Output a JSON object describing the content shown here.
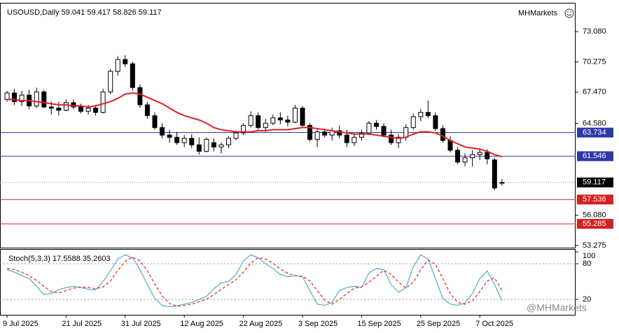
{
  "chart_data": [
    {
      "type": "candlestick",
      "title": "USOUSD,Daily",
      "brand": "MHMarkets",
      "watermark": "@MHMarkets",
      "categories": [
        "9 Jul 2025",
        null,
        null,
        null,
        null,
        null,
        null,
        null,
        "21 Jul 2025",
        null,
        null,
        null,
        null,
        null,
        null,
        null,
        "31 Jul 2025",
        null,
        null,
        null,
        null,
        null,
        null,
        null,
        "12 Aug 2025",
        null,
        null,
        null,
        null,
        null,
        null,
        null,
        "22 Aug 2025",
        null,
        null,
        null,
        null,
        null,
        null,
        null,
        "3 Sep 2025",
        null,
        null,
        null,
        null,
        null,
        null,
        null,
        "15 Sep 2025",
        null,
        null,
        null,
        null,
        null,
        null,
        null,
        "25 Sep 2025",
        null,
        null,
        null,
        null,
        null,
        null,
        null,
        "7 Oct 2025",
        null,
        null,
        null
      ],
      "open": [
        66.8,
        67.4,
        66.6,
        67.2,
        66.2,
        67.5,
        66.1,
        66.0,
        65.8,
        66.5,
        66.1,
        65.7,
        66.0,
        65.6,
        67.5,
        69.4,
        70.5,
        70.1,
        67.9,
        66.3,
        65.3,
        64.2,
        63.5,
        63.3,
        62.8,
        63.2,
        62.6,
        62.0,
        62.8,
        62.4,
        62.6,
        63.2,
        63.7,
        64.4,
        65.3,
        64.2,
        64.6,
        65.1,
        64.9,
        64.7,
        66.0,
        64.4,
        63.1,
        63.8,
        63.5,
        63.9,
        63.5,
        62.8,
        63.3,
        63.7,
        64.6,
        64.3,
        63.5,
        62.8,
        63.3,
        64.2,
        65.2,
        65.6,
        65.3,
        64.1,
        63.0,
        62.1,
        61.0,
        61.4,
        61.7,
        61.9,
        61.2,
        59.041
      ],
      "high": [
        67.6,
        67.8,
        67.6,
        67.7,
        67.9,
        67.7,
        66.6,
        66.6,
        66.8,
        66.8,
        66.4,
        66.3,
        66.3,
        67.8,
        69.6,
        70.8,
        70.9,
        70.3,
        68.2,
        66.6,
        65.6,
        64.6,
        64.0,
        63.8,
        63.5,
        63.6,
        63.3,
        63.3,
        63.2,
        62.8,
        63.4,
        63.9,
        64.6,
        65.7,
        65.6,
        65.0,
        65.4,
        65.6,
        65.3,
        66.3,
        66.2,
        64.6,
        64.0,
        64.1,
        64.2,
        64.4,
        64.0,
        63.6,
        64.0,
        64.8,
        64.9,
        64.6,
        64.0,
        63.6,
        64.5,
        65.5,
        65.9,
        66.7,
        65.6,
        64.4,
        63.4,
        62.4,
        61.8,
        62.1,
        62.3,
        62.2,
        61.4,
        59.417
      ],
      "low": [
        66.6,
        66.3,
        66.2,
        65.9,
        66.0,
        66.0,
        65.4,
        65.3,
        65.7,
        65.9,
        65.5,
        65.4,
        65.3,
        65.5,
        67.3,
        69.0,
        69.8,
        67.6,
        66.0,
        65.0,
        64.0,
        63.2,
        62.8,
        62.6,
        62.4,
        62.3,
        61.7,
        61.9,
        62.0,
        61.8,
        62.3,
        63.0,
        63.5,
        64.2,
        64.0,
        63.8,
        64.4,
        64.5,
        64.3,
        64.6,
        64.3,
        62.9,
        62.4,
        63.3,
        63.0,
        63.2,
        62.4,
        62.5,
        63.0,
        63.5,
        64.0,
        63.3,
        62.6,
        62.3,
        63.0,
        64.0,
        64.8,
        65.1,
        63.9,
        62.8,
        61.9,
        60.8,
        60.6,
        60.6,
        61.2,
        60.8,
        58.4,
        58.826
      ],
      "close": [
        67.4,
        66.6,
        67.2,
        66.2,
        67.5,
        66.1,
        66.0,
        65.8,
        66.5,
        66.1,
        65.7,
        66.0,
        65.6,
        67.5,
        69.4,
        70.5,
        70.1,
        67.9,
        66.3,
        65.3,
        64.2,
        63.5,
        63.3,
        62.8,
        63.2,
        62.6,
        62.0,
        63.1,
        62.4,
        62.6,
        63.2,
        63.7,
        64.4,
        65.3,
        64.2,
        64.6,
        65.1,
        64.9,
        64.7,
        66.0,
        64.4,
        63.1,
        63.8,
        63.5,
        63.9,
        63.5,
        62.8,
        63.3,
        63.7,
        64.6,
        64.3,
        63.5,
        62.8,
        63.3,
        64.2,
        65.2,
        65.6,
        65.3,
        64.1,
        63.0,
        62.1,
        61.0,
        61.4,
        61.7,
        61.9,
        61.3,
        58.6,
        59.117
      ],
      "bull_color": "#ffffff",
      "bear_color": "#000000",
      "outline_color": "#000000",
      "series": [
        {
          "color": "#e0202a",
          "values": [
            66.8,
            66.8,
            66.7,
            66.7,
            66.6,
            66.5,
            66.4,
            66.3,
            66.3,
            66.2,
            66.2,
            66.1,
            66.2,
            66.4,
            66.6,
            66.9,
            67.3,
            67.4,
            67.3,
            67.0,
            66.7,
            66.4,
            66.0,
            65.6,
            65.3,
            65.1,
            64.9,
            64.6,
            64.2,
            64.0,
            63.9,
            63.8,
            63.8,
            63.8,
            63.9,
            63.9,
            64.0,
            64.0,
            64.0,
            64.1,
            64.2,
            64.2,
            64.1,
            64.0,
            63.9,
            63.8,
            63.7,
            63.6,
            63.6,
            63.6,
            63.5,
            63.4,
            63.3,
            63.2,
            63.3,
            63.6,
            63.8,
            63.8,
            63.7,
            63.4,
            63.0,
            62.7,
            62.4,
            62.3,
            62.2,
            62.0,
            61.7,
            61.5
          ]
        }
      ],
      "levels": [
        {
          "value": 63.734,
          "color": "#2b3aa8",
          "style": "solid"
        },
        {
          "value": 61.546,
          "color": "#2b3aa8",
          "style": "solid"
        },
        {
          "value": 59.117,
          "color": "#000000",
          "style": "dotted"
        },
        {
          "value": 57.536,
          "color": "#d42020",
          "style": "solid"
        },
        {
          "value": 55.285,
          "color": "#d42020",
          "style": "solid"
        }
      ],
      "ylim": [
        53.08,
        75.49
      ],
      "yticks": [
        {
          "value": 73.08,
          "label": "73.080"
        },
        70.275,
        {
          "value": 67.47,
          "label": "67.470"
        },
        {
          "value": 64.58,
          "label": "64.580"
        },
        {
          "value": 56.08,
          "label": "56.080"
        },
        53.275
      ]
    },
    {
      "type": "line",
      "title": "Stoch(5,3,3)",
      "series": [
        {
          "color": "#5ab4c8",
          "style": "solid",
          "values": [
            70,
            66,
            60,
            55,
            42,
            28,
            30,
            36,
            40,
            42,
            40,
            37,
            36,
            50,
            68,
            88,
            95,
            90,
            70,
            45,
            22,
            10,
            8,
            9,
            12,
            15,
            20,
            25,
            38,
            48,
            50,
            62,
            85,
            95,
            90,
            80,
            72,
            62,
            58,
            60,
            58,
            35,
            12,
            10,
            15,
            35,
            40,
            42,
            40,
            65,
            72,
            70,
            45,
            32,
            40,
            75,
            95,
            88,
            55,
            22,
            12,
            10,
            14,
            30,
            55,
            68,
            45,
            17.5588
          ]
        },
        {
          "color": "#e03030",
          "style": "dashed",
          "values": [
            72,
            70,
            66,
            60,
            52,
            42,
            33,
            31,
            35,
            39,
            41,
            40,
            38,
            41,
            51,
            69,
            84,
            91,
            85,
            68,
            46,
            26,
            13,
            9,
            10,
            12,
            16,
            20,
            28,
            37,
            45,
            53,
            66,
            81,
            90,
            88,
            81,
            71,
            64,
            60,
            59,
            51,
            35,
            19,
            12,
            20,
            30,
            39,
            41,
            49,
            59,
            69,
            62,
            49,
            39,
            49,
            70,
            86,
            79,
            55,
            30,
            15,
            12,
            18,
            33,
            51,
            56,
            35.2603
          ]
        }
      ],
      "levels": [
        80,
        20
      ],
      "ylim": [
        0,
        100
      ],
      "yticks": [
        100,
        80,
        20
      ]
    }
  ]
}
